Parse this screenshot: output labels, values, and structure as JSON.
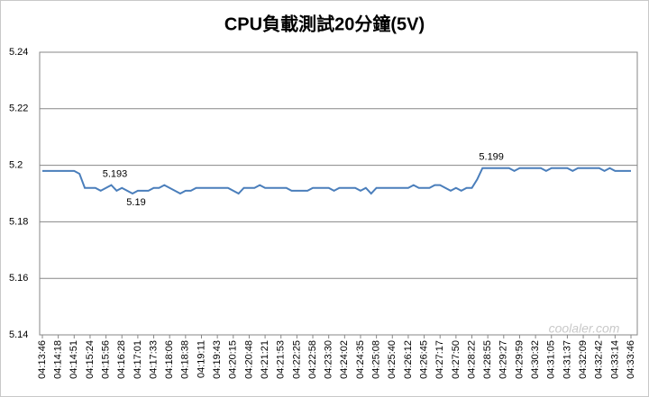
{
  "chart_data": {
    "type": "line",
    "title": "CPU負載測試20分鐘(5V)",
    "color": "#4a7ebb",
    "grid": true,
    "ylim": [
      5.14,
      5.24
    ],
    "yticks": [
      5.14,
      5.16,
      5.18,
      5.2,
      5.22,
      5.24
    ],
    "watermark": "coolaler.com",
    "categories": [
      "04:13:46",
      null,
      null,
      "04:14:18",
      null,
      null,
      "04:14:51",
      null,
      null,
      "04:15:24",
      null,
      null,
      "04:15:56",
      null,
      null,
      "04:16:28",
      null,
      null,
      "04:17:01",
      null,
      null,
      "04:17:33",
      null,
      null,
      "04:18:06",
      null,
      null,
      "04:18:38",
      null,
      null,
      "04:19:11",
      null,
      null,
      "04:19:43",
      null,
      null,
      "04:20:15",
      null,
      null,
      "04:20:48",
      null,
      null,
      "04:21:21",
      null,
      null,
      "04:21:53",
      null,
      null,
      "04:22:25",
      null,
      null,
      "04:22:58",
      null,
      null,
      "04:23:30",
      null,
      null,
      "04:24:02",
      null,
      null,
      "04:24:35",
      null,
      null,
      "04:25:08",
      null,
      null,
      "04:25:40",
      null,
      null,
      "04:26:12",
      null,
      null,
      "04:26:45",
      null,
      null,
      "04:27:17",
      null,
      null,
      "04:27:50",
      null,
      null,
      "04:28:22",
      null,
      null,
      "04:28:55",
      null,
      null,
      "04:29:27",
      null,
      null,
      "04:29:59",
      null,
      null,
      "04:30:32",
      null,
      null,
      "04:31:05",
      null,
      null,
      "04:31:37",
      null,
      null,
      "04:32:09",
      null,
      null,
      "04:32:42",
      null,
      null,
      "04:33:14",
      null,
      null,
      "04:33:46"
    ],
    "values": [
      5.198,
      5.198,
      5.198,
      5.198,
      5.198,
      5.198,
      5.198,
      5.197,
      5.192,
      5.192,
      5.192,
      5.191,
      5.192,
      5.193,
      5.191,
      5.192,
      5.191,
      5.19,
      5.191,
      5.191,
      5.191,
      5.192,
      5.192,
      5.193,
      5.192,
      5.191,
      5.19,
      5.191,
      5.191,
      5.192,
      5.192,
      5.192,
      5.192,
      5.192,
      5.192,
      5.192,
      5.191,
      5.19,
      5.192,
      5.192,
      5.192,
      5.193,
      5.192,
      5.192,
      5.192,
      5.192,
      5.192,
      5.191,
      5.191,
      5.191,
      5.191,
      5.192,
      5.192,
      5.192,
      5.192,
      5.191,
      5.192,
      5.192,
      5.192,
      5.192,
      5.191,
      5.192,
      5.19,
      5.192,
      5.192,
      5.192,
      5.192,
      5.192,
      5.192,
      5.192,
      5.193,
      5.192,
      5.192,
      5.192,
      5.193,
      5.193,
      5.192,
      5.191,
      5.192,
      5.191,
      5.192,
      5.192,
      5.195,
      5.199,
      5.199,
      5.199,
      5.199,
      5.199,
      5.199,
      5.198,
      5.199,
      5.199,
      5.199,
      5.199,
      5.199,
      5.198,
      5.199,
      5.199,
      5.199,
      5.199,
      5.198,
      5.199,
      5.199,
      5.199,
      5.199,
      5.199,
      5.198,
      5.199,
      5.198,
      5.198,
      5.198,
      5.198
    ],
    "value_labels": [
      null,
      null,
      null,
      null,
      null,
      null,
      null,
      null,
      null,
      null,
      null,
      null,
      null,
      "5.193",
      null,
      null,
      null,
      "5.19",
      null,
      null,
      null,
      null,
      null,
      null,
      null,
      null,
      null,
      null,
      null,
      null,
      null,
      null,
      null,
      null,
      null,
      null,
      null,
      null,
      null,
      null,
      null,
      null,
      null,
      null,
      null,
      null,
      null,
      null,
      null,
      null,
      null,
      null,
      null,
      null,
      null,
      null,
      null,
      null,
      null,
      null,
      null,
      null,
      null,
      null,
      null,
      null,
      null,
      null,
      null,
      null,
      null,
      null,
      null,
      null,
      null,
      null,
      null,
      null,
      null,
      null,
      null,
      null,
      null,
      null,
      "5.199",
      null,
      null,
      null,
      null,
      null,
      null,
      null,
      null,
      null,
      null,
      null,
      null,
      null,
      null,
      null,
      null,
      null,
      null,
      null,
      null,
      null,
      null,
      null,
      null,
      null,
      null,
      null
    ]
  }
}
